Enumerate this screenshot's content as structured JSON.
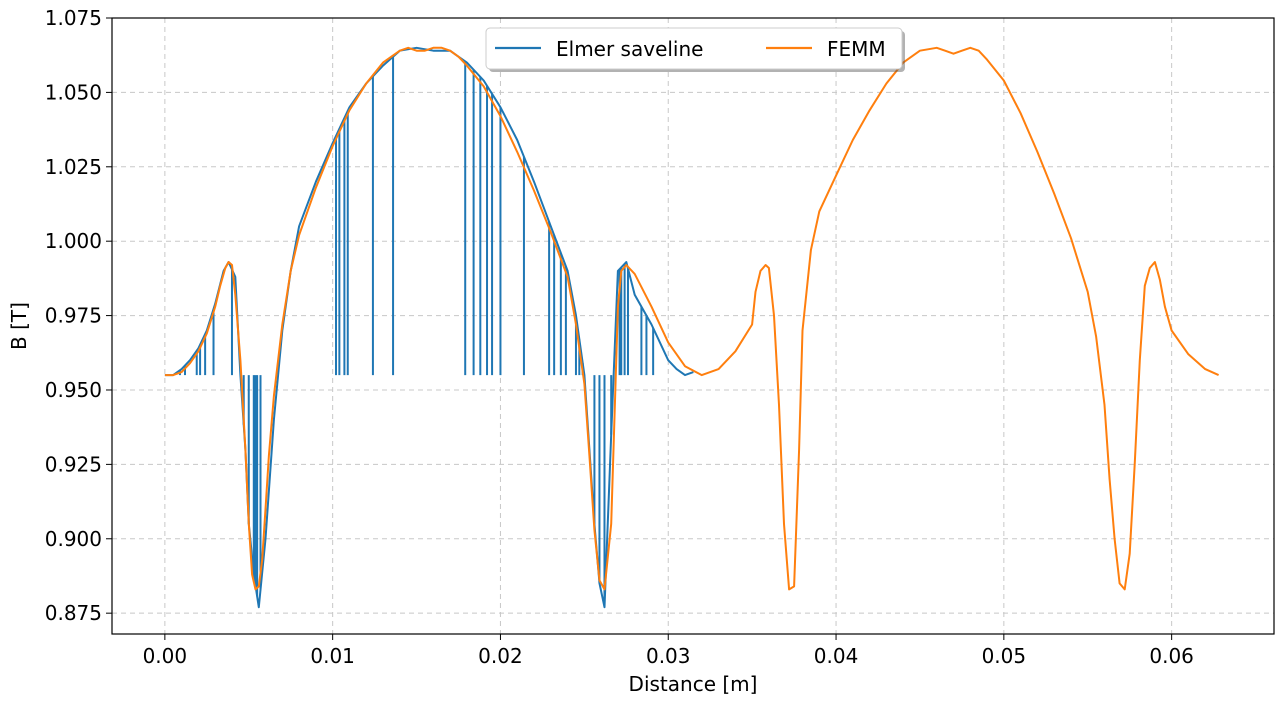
{
  "chart_data": {
    "type": "line",
    "xlabel": "Distance [m]",
    "ylabel": "B [T]",
    "xlim": [
      -0.00315,
      0.0661
    ],
    "ylim": [
      0.868,
      1.075
    ],
    "xticks": [
      0.0,
      0.01,
      0.02,
      0.03,
      0.04,
      0.05,
      0.06
    ],
    "xtick_labels": [
      "0.00",
      "0.01",
      "0.02",
      "0.03",
      "0.04",
      "0.05",
      "0.06"
    ],
    "yticks": [
      0.875,
      0.9,
      0.925,
      0.95,
      0.975,
      1.0,
      1.025,
      1.05,
      1.075
    ],
    "ytick_labels": [
      "0.875",
      "0.900",
      "0.925",
      "0.950",
      "0.975",
      "1.000",
      "1.025",
      "1.050",
      "1.075"
    ],
    "grid": true,
    "grid_style": "dashed",
    "legend_position": "upper-center",
    "legend_columns": 2,
    "series": [
      {
        "name": "Elmer saveline",
        "color": "#1f77b4",
        "x": [
          0.0,
          0.0005,
          0.001,
          0.0015,
          0.002,
          0.0025,
          0.003,
          0.0035,
          0.0038,
          0.0042,
          0.0045,
          0.0048,
          0.005,
          0.0053,
          0.0056,
          0.006,
          0.0065,
          0.007,
          0.0075,
          0.008,
          0.009,
          0.01,
          0.011,
          0.012,
          0.013,
          0.014,
          0.015,
          0.016,
          0.017,
          0.0175,
          0.018,
          0.019,
          0.02,
          0.021,
          0.022,
          0.023,
          0.024,
          0.0245,
          0.025,
          0.0253,
          0.0256,
          0.0259,
          0.0262,
          0.0266,
          0.027,
          0.0275,
          0.028,
          0.029,
          0.03,
          0.0305,
          0.031,
          0.0315
        ],
        "y": [
          0.955,
          0.955,
          0.957,
          0.96,
          0.964,
          0.97,
          0.979,
          0.99,
          0.993,
          0.988,
          0.955,
          0.93,
          0.905,
          0.888,
          0.877,
          0.9,
          0.94,
          0.97,
          0.99,
          1.005,
          1.02,
          1.033,
          1.045,
          1.053,
          1.059,
          1.064,
          1.065,
          1.064,
          1.064,
          1.062,
          1.06,
          1.054,
          1.045,
          1.034,
          1.02,
          1.005,
          0.99,
          0.975,
          0.955,
          0.93,
          0.905,
          0.885,
          0.877,
          0.935,
          0.99,
          0.993,
          0.982,
          0.972,
          0.96,
          0.957,
          0.955,
          0.956
        ]
      },
      {
        "name": "FEMM",
        "color": "#ff7f0e",
        "x": [
          0.0,
          0.0005,
          0.001,
          0.0015,
          0.002,
          0.0025,
          0.003,
          0.0033,
          0.0036,
          0.0038,
          0.004,
          0.0042,
          0.0045,
          0.0048,
          0.005,
          0.0052,
          0.0054,
          0.0056,
          0.0058,
          0.006,
          0.0062,
          0.0065,
          0.007,
          0.0075,
          0.008,
          0.009,
          0.01,
          0.011,
          0.012,
          0.013,
          0.014,
          0.0145,
          0.015,
          0.0155,
          0.016,
          0.0165,
          0.017,
          0.0175,
          0.018,
          0.019,
          0.02,
          0.021,
          0.022,
          0.023,
          0.024,
          0.0245,
          0.025,
          0.0253,
          0.0256,
          0.0259,
          0.0262,
          0.0266,
          0.027,
          0.0272,
          0.0275,
          0.028,
          0.029,
          0.03,
          0.031,
          0.032,
          0.033,
          0.034,
          0.035,
          0.0352,
          0.0355,
          0.0358,
          0.036,
          0.0363,
          0.0366,
          0.0369,
          0.0372,
          0.0375,
          0.0378,
          0.038,
          0.0385,
          0.039,
          0.04,
          0.041,
          0.042,
          0.043,
          0.044,
          0.045,
          0.046,
          0.0465,
          0.047,
          0.0475,
          0.048,
          0.0485,
          0.049,
          0.05,
          0.051,
          0.052,
          0.053,
          0.054,
          0.055,
          0.0555,
          0.056,
          0.0563,
          0.0566,
          0.0569,
          0.0572,
          0.0575,
          0.0578,
          0.0581,
          0.0584,
          0.0587,
          0.059,
          0.0593,
          0.0596,
          0.06,
          0.061,
          0.062,
          0.0628
        ],
        "y": [
          0.955,
          0.955,
          0.956,
          0.959,
          0.963,
          0.969,
          0.978,
          0.985,
          0.991,
          0.993,
          0.992,
          0.982,
          0.96,
          0.93,
          0.905,
          0.888,
          0.883,
          0.884,
          0.893,
          0.91,
          0.928,
          0.948,
          0.972,
          0.99,
          1.002,
          1.018,
          1.032,
          1.044,
          1.053,
          1.06,
          1.064,
          1.065,
          1.064,
          1.064,
          1.065,
          1.065,
          1.064,
          1.062,
          1.059,
          1.052,
          1.042,
          1.03,
          1.017,
          1.003,
          0.988,
          0.972,
          0.952,
          0.928,
          0.903,
          0.886,
          0.883,
          0.905,
          0.978,
          0.99,
          0.992,
          0.989,
          0.978,
          0.966,
          0.958,
          0.955,
          0.957,
          0.963,
          0.972,
          0.983,
          0.99,
          0.992,
          0.991,
          0.975,
          0.945,
          0.905,
          0.883,
          0.884,
          0.93,
          0.97,
          0.997,
          1.01,
          1.022,
          1.034,
          1.044,
          1.053,
          1.06,
          1.064,
          1.065,
          1.064,
          1.063,
          1.064,
          1.065,
          1.064,
          1.061,
          1.054,
          1.043,
          1.03,
          1.016,
          1.001,
          0.983,
          0.968,
          0.945,
          0.92,
          0.9,
          0.885,
          0.883,
          0.895,
          0.925,
          0.96,
          0.985,
          0.991,
          0.993,
          0.987,
          0.978,
          0.97,
          0.962,
          0.957,
          0.955
        ]
      }
    ],
    "elmer_dropouts": {
      "x": [
        0.0004,
        0.0009,
        0.0012,
        0.0019,
        0.0021,
        0.0024,
        0.0029,
        0.004,
        0.0045,
        0.0047,
        0.005,
        0.0053,
        0.0054,
        0.0055,
        0.0057,
        0.0102,
        0.0104,
        0.0107,
        0.0109,
        0.0124,
        0.0136,
        0.0179,
        0.0184,
        0.0188,
        0.0192,
        0.0195,
        0.02,
        0.0214,
        0.0229,
        0.0232,
        0.0236,
        0.0239,
        0.0245,
        0.0247,
        0.0249,
        0.0256,
        0.0259,
        0.0262,
        0.0266,
        0.0271,
        0.0272,
        0.0274,
        0.0276,
        0.0284,
        0.0287,
        0.0291
      ],
      "y_low": 0.955
    }
  },
  "legend": {
    "items": [
      {
        "label": "Elmer saveline",
        "color": "#1f77b4"
      },
      {
        "label": "FEMM",
        "color": "#ff7f0e"
      }
    ]
  }
}
